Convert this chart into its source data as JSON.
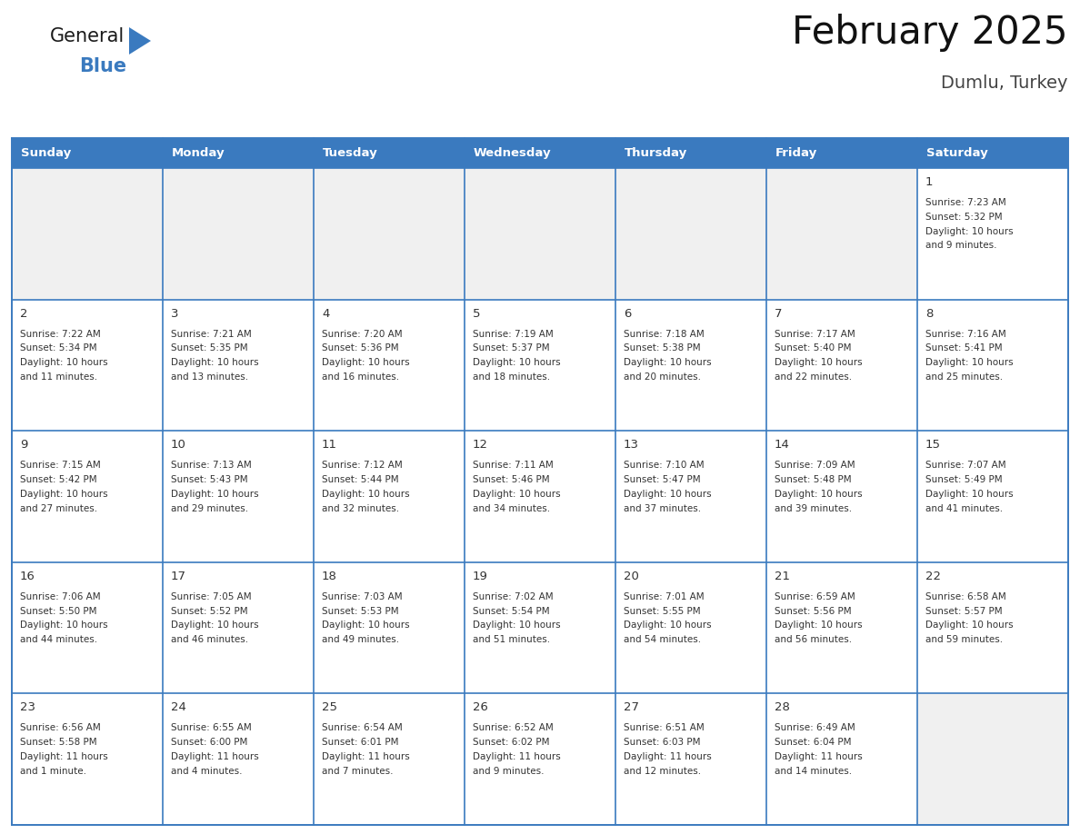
{
  "title": "February 2025",
  "subtitle": "Dumlu, Turkey",
  "header_color": "#3a7abf",
  "header_text_color": "#ffffff",
  "empty_cell_bg": "#f0f0f0",
  "white_cell_bg": "#ffffff",
  "border_color": "#3a7abf",
  "day_names": [
    "Sunday",
    "Monday",
    "Tuesday",
    "Wednesday",
    "Thursday",
    "Friday",
    "Saturday"
  ],
  "days_data": [
    {
      "day": 1,
      "col": 6,
      "row": 0,
      "sunrise": "7:23 AM",
      "sunset": "5:32 PM",
      "daylight_line1": "Daylight: 10 hours",
      "daylight_line2": "and 9 minutes."
    },
    {
      "day": 2,
      "col": 0,
      "row": 1,
      "sunrise": "7:22 AM",
      "sunset": "5:34 PM",
      "daylight_line1": "Daylight: 10 hours",
      "daylight_line2": "and 11 minutes."
    },
    {
      "day": 3,
      "col": 1,
      "row": 1,
      "sunrise": "7:21 AM",
      "sunset": "5:35 PM",
      "daylight_line1": "Daylight: 10 hours",
      "daylight_line2": "and 13 minutes."
    },
    {
      "day": 4,
      "col": 2,
      "row": 1,
      "sunrise": "7:20 AM",
      "sunset": "5:36 PM",
      "daylight_line1": "Daylight: 10 hours",
      "daylight_line2": "and 16 minutes."
    },
    {
      "day": 5,
      "col": 3,
      "row": 1,
      "sunrise": "7:19 AM",
      "sunset": "5:37 PM",
      "daylight_line1": "Daylight: 10 hours",
      "daylight_line2": "and 18 minutes."
    },
    {
      "day": 6,
      "col": 4,
      "row": 1,
      "sunrise": "7:18 AM",
      "sunset": "5:38 PM",
      "daylight_line1": "Daylight: 10 hours",
      "daylight_line2": "and 20 minutes."
    },
    {
      "day": 7,
      "col": 5,
      "row": 1,
      "sunrise": "7:17 AM",
      "sunset": "5:40 PM",
      "daylight_line1": "Daylight: 10 hours",
      "daylight_line2": "and 22 minutes."
    },
    {
      "day": 8,
      "col": 6,
      "row": 1,
      "sunrise": "7:16 AM",
      "sunset": "5:41 PM",
      "daylight_line1": "Daylight: 10 hours",
      "daylight_line2": "and 25 minutes."
    },
    {
      "day": 9,
      "col": 0,
      "row": 2,
      "sunrise": "7:15 AM",
      "sunset": "5:42 PM",
      "daylight_line1": "Daylight: 10 hours",
      "daylight_line2": "and 27 minutes."
    },
    {
      "day": 10,
      "col": 1,
      "row": 2,
      "sunrise": "7:13 AM",
      "sunset": "5:43 PM",
      "daylight_line1": "Daylight: 10 hours",
      "daylight_line2": "and 29 minutes."
    },
    {
      "day": 11,
      "col": 2,
      "row": 2,
      "sunrise": "7:12 AM",
      "sunset": "5:44 PM",
      "daylight_line1": "Daylight: 10 hours",
      "daylight_line2": "and 32 minutes."
    },
    {
      "day": 12,
      "col": 3,
      "row": 2,
      "sunrise": "7:11 AM",
      "sunset": "5:46 PM",
      "daylight_line1": "Daylight: 10 hours",
      "daylight_line2": "and 34 minutes."
    },
    {
      "day": 13,
      "col": 4,
      "row": 2,
      "sunrise": "7:10 AM",
      "sunset": "5:47 PM",
      "daylight_line1": "Daylight: 10 hours",
      "daylight_line2": "and 37 minutes."
    },
    {
      "day": 14,
      "col": 5,
      "row": 2,
      "sunrise": "7:09 AM",
      "sunset": "5:48 PM",
      "daylight_line1": "Daylight: 10 hours",
      "daylight_line2": "and 39 minutes."
    },
    {
      "day": 15,
      "col": 6,
      "row": 2,
      "sunrise": "7:07 AM",
      "sunset": "5:49 PM",
      "daylight_line1": "Daylight: 10 hours",
      "daylight_line2": "and 41 minutes."
    },
    {
      "day": 16,
      "col": 0,
      "row": 3,
      "sunrise": "7:06 AM",
      "sunset": "5:50 PM",
      "daylight_line1": "Daylight: 10 hours",
      "daylight_line2": "and 44 minutes."
    },
    {
      "day": 17,
      "col": 1,
      "row": 3,
      "sunrise": "7:05 AM",
      "sunset": "5:52 PM",
      "daylight_line1": "Daylight: 10 hours",
      "daylight_line2": "and 46 minutes."
    },
    {
      "day": 18,
      "col": 2,
      "row": 3,
      "sunrise": "7:03 AM",
      "sunset": "5:53 PM",
      "daylight_line1": "Daylight: 10 hours",
      "daylight_line2": "and 49 minutes."
    },
    {
      "day": 19,
      "col": 3,
      "row": 3,
      "sunrise": "7:02 AM",
      "sunset": "5:54 PM",
      "daylight_line1": "Daylight: 10 hours",
      "daylight_line2": "and 51 minutes."
    },
    {
      "day": 20,
      "col": 4,
      "row": 3,
      "sunrise": "7:01 AM",
      "sunset": "5:55 PM",
      "daylight_line1": "Daylight: 10 hours",
      "daylight_line2": "and 54 minutes."
    },
    {
      "day": 21,
      "col": 5,
      "row": 3,
      "sunrise": "6:59 AM",
      "sunset": "5:56 PM",
      "daylight_line1": "Daylight: 10 hours",
      "daylight_line2": "and 56 minutes."
    },
    {
      "day": 22,
      "col": 6,
      "row": 3,
      "sunrise": "6:58 AM",
      "sunset": "5:57 PM",
      "daylight_line1": "Daylight: 10 hours",
      "daylight_line2": "and 59 minutes."
    },
    {
      "day": 23,
      "col": 0,
      "row": 4,
      "sunrise": "6:56 AM",
      "sunset": "5:58 PM",
      "daylight_line1": "Daylight: 11 hours",
      "daylight_line2": "and 1 minute."
    },
    {
      "day": 24,
      "col": 1,
      "row": 4,
      "sunrise": "6:55 AM",
      "sunset": "6:00 PM",
      "daylight_line1": "Daylight: 11 hours",
      "daylight_line2": "and 4 minutes."
    },
    {
      "day": 25,
      "col": 2,
      "row": 4,
      "sunrise": "6:54 AM",
      "sunset": "6:01 PM",
      "daylight_line1": "Daylight: 11 hours",
      "daylight_line2": "and 7 minutes."
    },
    {
      "day": 26,
      "col": 3,
      "row": 4,
      "sunrise": "6:52 AM",
      "sunset": "6:02 PM",
      "daylight_line1": "Daylight: 11 hours",
      "daylight_line2": "and 9 minutes."
    },
    {
      "day": 27,
      "col": 4,
      "row": 4,
      "sunrise": "6:51 AM",
      "sunset": "6:03 PM",
      "daylight_line1": "Daylight: 11 hours",
      "daylight_line2": "and 12 minutes."
    },
    {
      "day": 28,
      "col": 5,
      "row": 4,
      "sunrise": "6:49 AM",
      "sunset": "6:04 PM",
      "daylight_line1": "Daylight: 11 hours",
      "daylight_line2": "and 14 minutes."
    }
  ],
  "num_rows": 5,
  "num_cols": 7,
  "logo_general_color": "#1a1a1a",
  "logo_blue_color": "#3a7abf",
  "logo_triangle_color": "#3a7abf",
  "day_number_color": "#333333",
  "text_color": "#333333",
  "title_color": "#111111",
  "subtitle_color": "#444444"
}
